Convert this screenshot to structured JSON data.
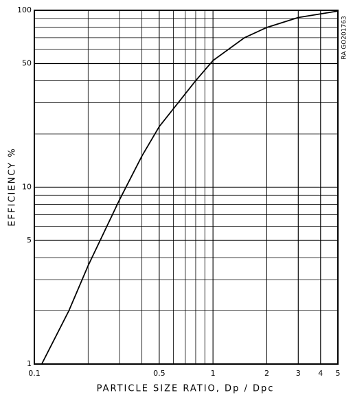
{
  "chart_data": {
    "type": "line",
    "xlabel": "PARTICLE SIZE RATIO, Dp / Dpc",
    "ylabel": "EFFICIENCY %",
    "annotation": "RA GO201763",
    "x": [
      0.11,
      0.156,
      0.2,
      0.3,
      0.4,
      0.5,
      0.8,
      1,
      1.5,
      2,
      3,
      5
    ],
    "series": [
      {
        "color": "#000000",
        "values": [
          1,
          2,
          3.6,
          8.5,
          15,
          22,
          40,
          52,
          70,
          80,
          91,
          99
        ]
      }
    ],
    "xlim": [
      0.1,
      5
    ],
    "ylim": [
      1,
      100
    ],
    "xticks": [
      0.1,
      0.5,
      1,
      2,
      3,
      4,
      5
    ],
    "yticks": [
      1,
      5,
      10,
      50,
      100
    ],
    "xscale": "log",
    "yscale": "log",
    "grid": true
  }
}
